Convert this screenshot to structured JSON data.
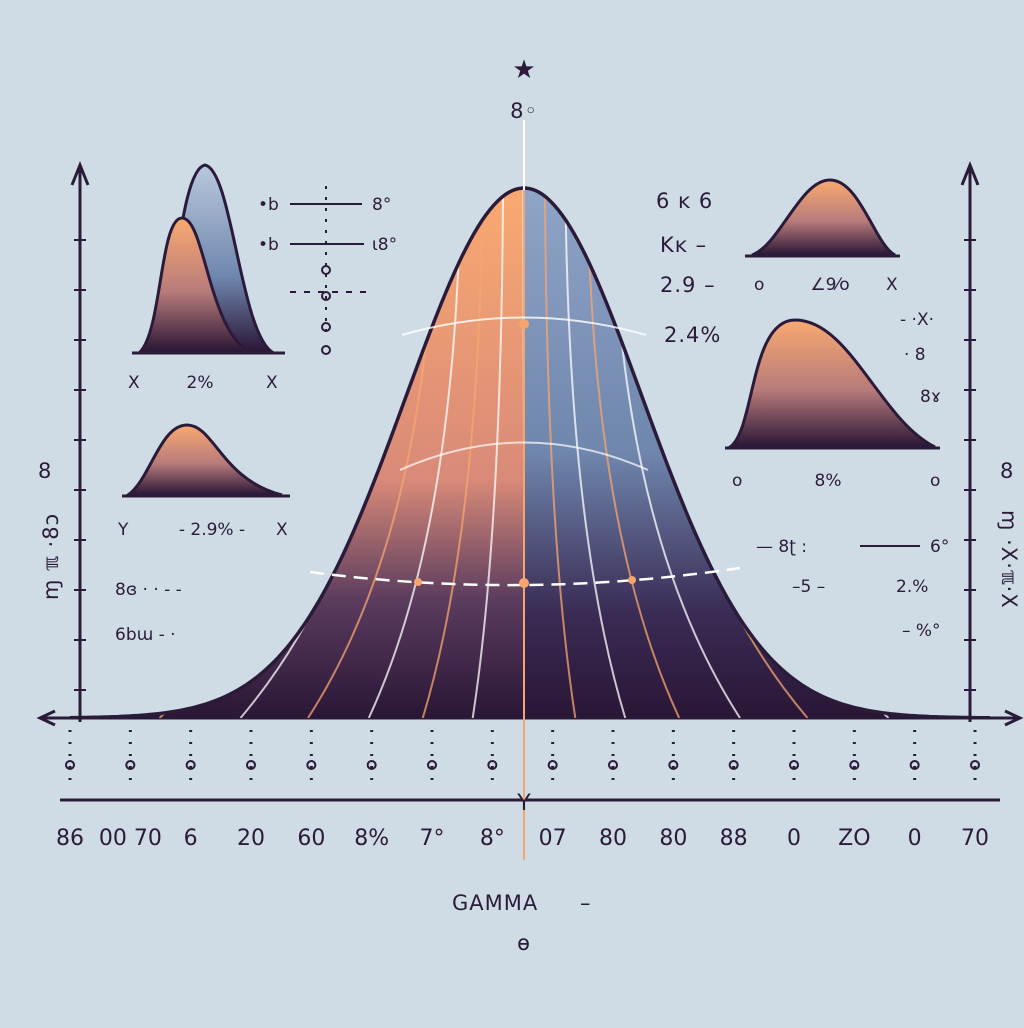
{
  "colors": {
    "background": "#cfdce6",
    "ink": "#2b1b3a",
    "peach": "#f7a56f",
    "slate_blue": "#6f86ad",
    "dark_base": "#2a1636"
  },
  "chart_data": [
    {
      "type": "area",
      "role": "main-bell-curve",
      "xlabel": "GAMMA",
      "xlabel_suffix": "–",
      "top_marker": "★",
      "top_label": "8◦",
      "bottom_center_label": "Y",
      "x_tick_labels": [
        "86",
        "00 70",
        "6",
        "20",
        "60",
        "8%",
        "7°",
        "8°",
        "07",
        "80",
        "80",
        "88",
        "0",
        "ZO",
        "0",
        "70"
      ],
      "left_axis_label": "8",
      "left_axis_rotated_label": "ɱ ℼ ·8ɔ",
      "right_axis_label": "8",
      "right_axis_rotated_label": "ɱ ·X·ℼ·X"
    },
    {
      "type": "area",
      "role": "inset-top-left",
      "x_left_label": "X",
      "center_label": "2%",
      "x_right_label": "X"
    },
    {
      "type": "area",
      "role": "inset-mid-left",
      "x_left_label": "Y",
      "center_label": "- 2.9% -",
      "x_right_label": "X"
    },
    {
      "type": "area",
      "role": "inset-top-right",
      "x_left_label": "o",
      "center_label": "∠9⁄o",
      "x_right_label": "X"
    },
    {
      "type": "area",
      "role": "inset-mid-right",
      "x_left_label": "o",
      "center_label": "8%",
      "x_right_label": "o"
    }
  ],
  "annotations": {
    "top_left": [
      {
        "prefix": "•b",
        "value": "8°"
      },
      {
        "prefix": "•b",
        "value": "ɩ8°"
      }
    ],
    "upper_mid_right": [
      "6 ĸ 6",
      "Kĸ –",
      "2.9 –",
      "2.4%"
    ],
    "right_side": [
      "- ·X·",
      "· 8",
      "8ɤ"
    ],
    "left_mid": [
      "8ɞ · · - -",
      "6bɯ - ·"
    ],
    "right_mid": [
      {
        "left": "— 8ʈ :",
        "right": "6°"
      },
      {
        "left": "–5 –",
        "right": "2.%"
      },
      {
        "left": "– %°",
        "right": ""
      }
    ]
  },
  "footer_symbol": "ɵ"
}
